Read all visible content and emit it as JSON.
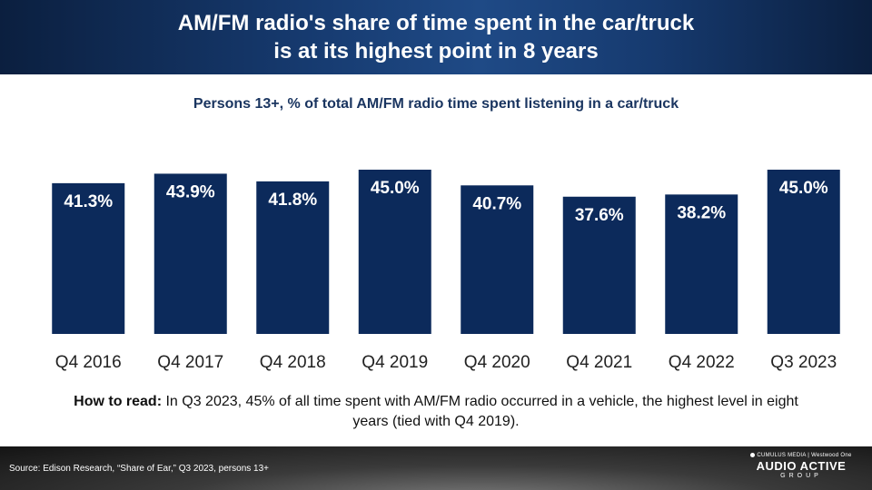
{
  "header": {
    "title_line1": "AM/FM radio's share of time spent in the car/truck",
    "title_line2": "is at its highest point in 8 years"
  },
  "chart_data": {
    "type": "bar",
    "title": "Persons 13+, % of total AM/FM radio time spent listening in a car/truck",
    "categories": [
      "Q4 2016",
      "Q4 2017",
      "Q4 2018",
      "Q4 2019",
      "Q4 2020",
      "Q4 2021",
      "Q4 2022",
      "Q3 2023"
    ],
    "values": [
      41.3,
      43.9,
      41.8,
      45.0,
      40.7,
      37.6,
      38.2,
      45.0
    ],
    "data_labels": [
      "41.3%",
      "43.9%",
      "41.8%",
      "45.0%",
      "40.7%",
      "37.6%",
      "38.2%",
      "45.0%"
    ],
    "bar_color": "#0c2a5b",
    "ylim": [
      0,
      45.0
    ],
    "grid": false
  },
  "how_to_read": {
    "lead": "How to read:",
    "text": " In Q3 2023, 45% of all time spent with AM/FM radio occurred in a vehicle, the highest level in eight years (tied with Q4 2019)."
  },
  "footer": {
    "source": "Source: Edison Research, “Share of Ear,” Q3 2023, persons 13+",
    "brand_top": "CUMULUS MEDIA | Westwood One",
    "brand_main": "AUDIO ACTIVE",
    "brand_group": "GROUP"
  },
  "colors": {
    "header_bg": "#163a6f",
    "subtitle": "#1a3560",
    "bar": "#0c2a5b"
  }
}
